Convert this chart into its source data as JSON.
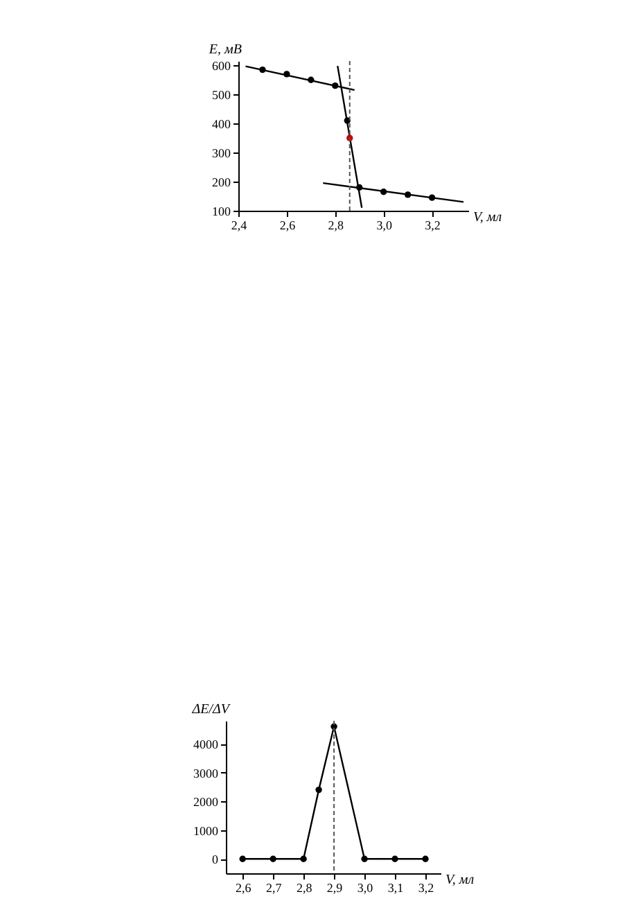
{
  "chart_data": [
    {
      "type": "scatter",
      "xlabel": "V, мл",
      "ylabel": "E, мВ",
      "xlim": [
        2.4,
        3.35
      ],
      "ylim": [
        100,
        615
      ],
      "xticks": [
        {
          "value": 2.4,
          "label": "2,4"
        },
        {
          "value": 2.6,
          "label": "2,6"
        },
        {
          "value": 2.8,
          "label": "2,8"
        },
        {
          "value": 3.0,
          "label": "3,0"
        },
        {
          "value": 3.2,
          "label": "3,2"
        }
      ],
      "yticks": [
        100,
        200,
        300,
        400,
        500,
        600
      ],
      "marker": "circle",
      "line_style": "solid",
      "ref_lines": [
        {
          "axis": "x",
          "value": 2.86,
          "line_style": "dashed",
          "color": "#555555"
        }
      ],
      "series": [
        {
          "type": "line",
          "marker": "none",
          "color": "#000000",
          "x": [
            2.43,
            2.88
          ],
          "values": [
            597,
            515
          ]
        },
        {
          "type": "line",
          "marker": "none",
          "color": "#000000",
          "x": [
            2.81,
            2.91
          ],
          "values": [
            598,
            110
          ]
        },
        {
          "type": "line",
          "marker": "none",
          "color": "#000000",
          "x": [
            2.75,
            3.33
          ],
          "values": [
            195,
            130
          ]
        },
        {
          "type": "scatter",
          "color": "#000000",
          "x": [
            2.5,
            2.6,
            2.7,
            2.8,
            2.85,
            2.9,
            3.0,
            3.1,
            3.2
          ],
          "values": [
            585,
            570,
            550,
            530,
            410,
            180,
            165,
            155,
            145
          ]
        },
        {
          "type": "scatter",
          "color": "#cc0000",
          "x": [
            2.86
          ],
          "values": [
            350
          ]
        }
      ]
    },
    {
      "type": "line",
      "xlabel": "V, мл",
      "ylabel": "ΔE/ΔV",
      "xlim": [
        2.545,
        3.25
      ],
      "ylim": [
        -500,
        4800
      ],
      "xticks": [
        {
          "value": 2.6,
          "label": "2,6"
        },
        {
          "value": 2.7,
          "label": "2,7"
        },
        {
          "value": 2.8,
          "label": "2,8"
        },
        {
          "value": 2.9,
          "label": "2,9"
        },
        {
          "value": 3.0,
          "label": "3,0"
        },
        {
          "value": 3.1,
          "label": "3,1"
        },
        {
          "value": 3.2,
          "label": "3,2"
        }
      ],
      "yticks": [
        0,
        1000,
        2000,
        3000,
        4000
      ],
      "marker": "circle",
      "line_style": "solid",
      "ref_lines": [
        {
          "axis": "x",
          "value": 2.9,
          "line_style": "dashed",
          "color": "#555555"
        }
      ],
      "series": [
        {
          "color": "#000000",
          "x": [
            2.6,
            2.7,
            2.8,
            2.85,
            2.9,
            3.0,
            3.1,
            3.2
          ],
          "values": [
            0,
            0,
            0,
            2400,
            4600,
            0,
            0,
            0
          ]
        }
      ]
    }
  ]
}
